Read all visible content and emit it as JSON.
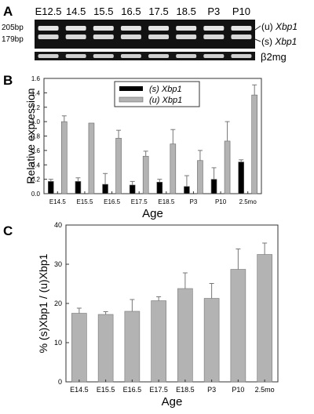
{
  "panel_a": {
    "label": "A",
    "lanes": [
      "E12.5",
      "14.5",
      "15.5",
      "16.5",
      "17.5",
      "18.5",
      "P3",
      "P10"
    ],
    "size_markers": [
      "205bp",
      "179bp"
    ],
    "band_labels": [
      "(u) ",
      "Xbp1",
      "(s) ",
      "Xbp1"
    ],
    "loading_control": "β2mg"
  },
  "chart_data": [
    {
      "panel": "B",
      "type": "bar",
      "categories": [
        "E14.5",
        "E15.5",
        "E16.5",
        "E17.5",
        "E18.5",
        "P3",
        "P10",
        "2.5mo"
      ],
      "series": [
        {
          "name": "(s) Xbp1",
          "color": "#000000",
          "values": [
            0.17,
            0.17,
            0.13,
            0.12,
            0.16,
            0.1,
            0.2,
            0.44
          ],
          "errors": [
            0.03,
            0.05,
            0.15,
            0.05,
            0.04,
            0.15,
            0.16,
            0.03
          ]
        },
        {
          "name": "(u) Xbp1",
          "color": "#b3b3b3",
          "values": [
            1.0,
            0.98,
            0.77,
            0.52,
            0.69,
            0.46,
            0.73,
            1.37
          ],
          "errors": [
            0.08,
            0.0,
            0.11,
            0.07,
            0.2,
            0.14,
            0.27,
            0.14
          ]
        }
      ],
      "xlabel": "Age",
      "ylabel": "Relative expression",
      "ylim": [
        0.0,
        1.6
      ],
      "yticks": [
        "0.0",
        "0.2",
        "0.4",
        "0.6",
        "0.8",
        "1.0",
        "1.2",
        "1.4",
        "1.6"
      ],
      "legend": "top-center"
    },
    {
      "panel": "C",
      "type": "bar",
      "categories": [
        "E14.5",
        "E15.5",
        "E16.5",
        "E17.5",
        "E18.5",
        "P3",
        "P10",
        "2.5mo"
      ],
      "series": [
        {
          "color": "#b3b3b3",
          "values": [
            17.5,
            17.2,
            18.0,
            20.7,
            23.8,
            21.3,
            28.7,
            32.5
          ],
          "errors": [
            1.3,
            0.7,
            3.0,
            1.0,
            4.0,
            3.8,
            5.2,
            2.9
          ]
        }
      ],
      "xlabel": "Age",
      "ylabel": "% (s)Xbp1 / (u)Xbp1",
      "ylim": [
        0,
        40
      ],
      "yticks": [
        "0",
        "10",
        "20",
        "30",
        "40"
      ]
    }
  ]
}
